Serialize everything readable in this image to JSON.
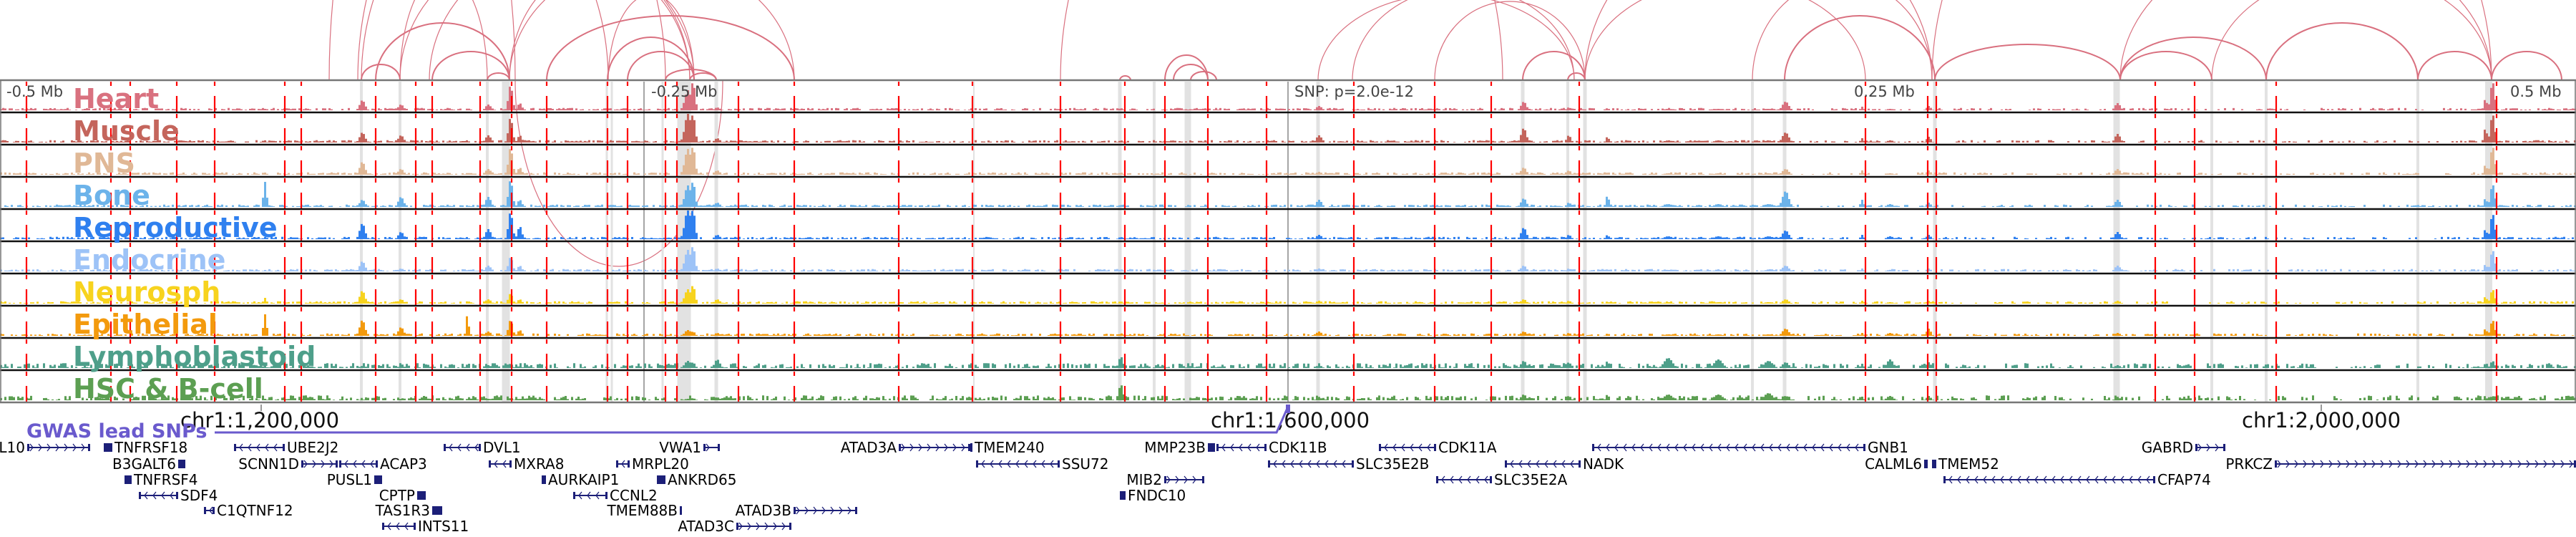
{
  "colors": {
    "arc": "#d9707f",
    "snp_line": "#ff0000",
    "highlight": "#e2e2e2",
    "gene": "#1c1f78",
    "gwas": "#6a5acd"
  },
  "ruler": {
    "left_label": "-0.5 Mb",
    "mid_left_label": "-0.25 Mb",
    "snp_label": "SNP: p=2.0e-12",
    "mid_right_label": "0.25 Mb",
    "right_label": "0.5 Mb"
  },
  "tracks": [
    {
      "label": "Heart",
      "color": "#d9717f"
    },
    {
      "label": "Muscle",
      "color": "#c4655c"
    },
    {
      "label": "PNS",
      "color": "#e0b896"
    },
    {
      "label": "Bone",
      "color": "#6cb3ea"
    },
    {
      "label": "Reproductive",
      "color": "#2f80ef"
    },
    {
      "label": "Endocrine",
      "color": "#9dc3f7"
    },
    {
      "label": "Neurosph",
      "color": "#f7d31e"
    },
    {
      "label": "Epithelial",
      "color": "#f39a0d"
    },
    {
      "label": "Lymphoblastoid",
      "color": "#4e9f8a"
    },
    {
      "label": "HSC & B-cell",
      "color": "#5c9f52"
    }
  ],
  "coordinates": {
    "tick1": "chr1:1,200,000",
    "tick2": "chr1:1,600,000",
    "tick3": "chr1:2,000,000"
  },
  "gwas_label": "GWAS lead SNPs",
  "genes": [
    {
      "name": "L10",
      "strand": "+"
    },
    {
      "name": "TNFRSF18",
      "strand": "-"
    },
    {
      "name": "UBE2J2",
      "strand": "-"
    },
    {
      "name": "DVL1",
      "strand": "-"
    },
    {
      "name": "VWA1",
      "strand": "+"
    },
    {
      "name": "ATAD3A",
      "strand": "+"
    },
    {
      "name": "TMEM240",
      "strand": "-"
    },
    {
      "name": "MMP23B",
      "strand": "+"
    },
    {
      "name": "CDK11B",
      "strand": "-"
    },
    {
      "name": "CDK11A",
      "strand": "-"
    },
    {
      "name": "GNB1",
      "strand": "-"
    },
    {
      "name": "GABRD",
      "strand": "+"
    },
    {
      "name": "B3GALT6",
      "strand": "+"
    },
    {
      "name": "SCNN1D",
      "strand": "+"
    },
    {
      "name": "ACAP3",
      "strand": "-"
    },
    {
      "name": "MXRA8",
      "strand": "-"
    },
    {
      "name": "MRPL20",
      "strand": "-"
    },
    {
      "name": "SSU72",
      "strand": "-"
    },
    {
      "name": "SLC35E2B",
      "strand": "-"
    },
    {
      "name": "NADK",
      "strand": "-"
    },
    {
      "name": "CALML6",
      "strand": "+"
    },
    {
      "name": "TMEM52",
      "strand": "-"
    },
    {
      "name": "PRKCZ",
      "strand": "+"
    },
    {
      "name": "TNFRSF4",
      "strand": "-"
    },
    {
      "name": "PUSL1",
      "strand": "+"
    },
    {
      "name": "AURKAIP1",
      "strand": "-"
    },
    {
      "name": "ANKRD65",
      "strand": "-"
    },
    {
      "name": "MIB2",
      "strand": "+"
    },
    {
      "name": "SLC35E2A",
      "strand": "-"
    },
    {
      "name": "CFAP74",
      "strand": "-"
    },
    {
      "name": "SDF4",
      "strand": "-"
    },
    {
      "name": "CPTP",
      "strand": "+"
    },
    {
      "name": "CCNL2",
      "strand": "-"
    },
    {
      "name": "FNDC10",
      "strand": "+"
    },
    {
      "name": "C1QTNF12",
      "strand": "-"
    },
    {
      "name": "TAS1R3",
      "strand": "+"
    },
    {
      "name": "TMEM88B",
      "strand": "-"
    },
    {
      "name": "ATAD3B",
      "strand": "+"
    },
    {
      "name": "INTS11",
      "strand": "-"
    },
    {
      "name": "ATAD3C",
      "strand": "+"
    }
  ]
}
